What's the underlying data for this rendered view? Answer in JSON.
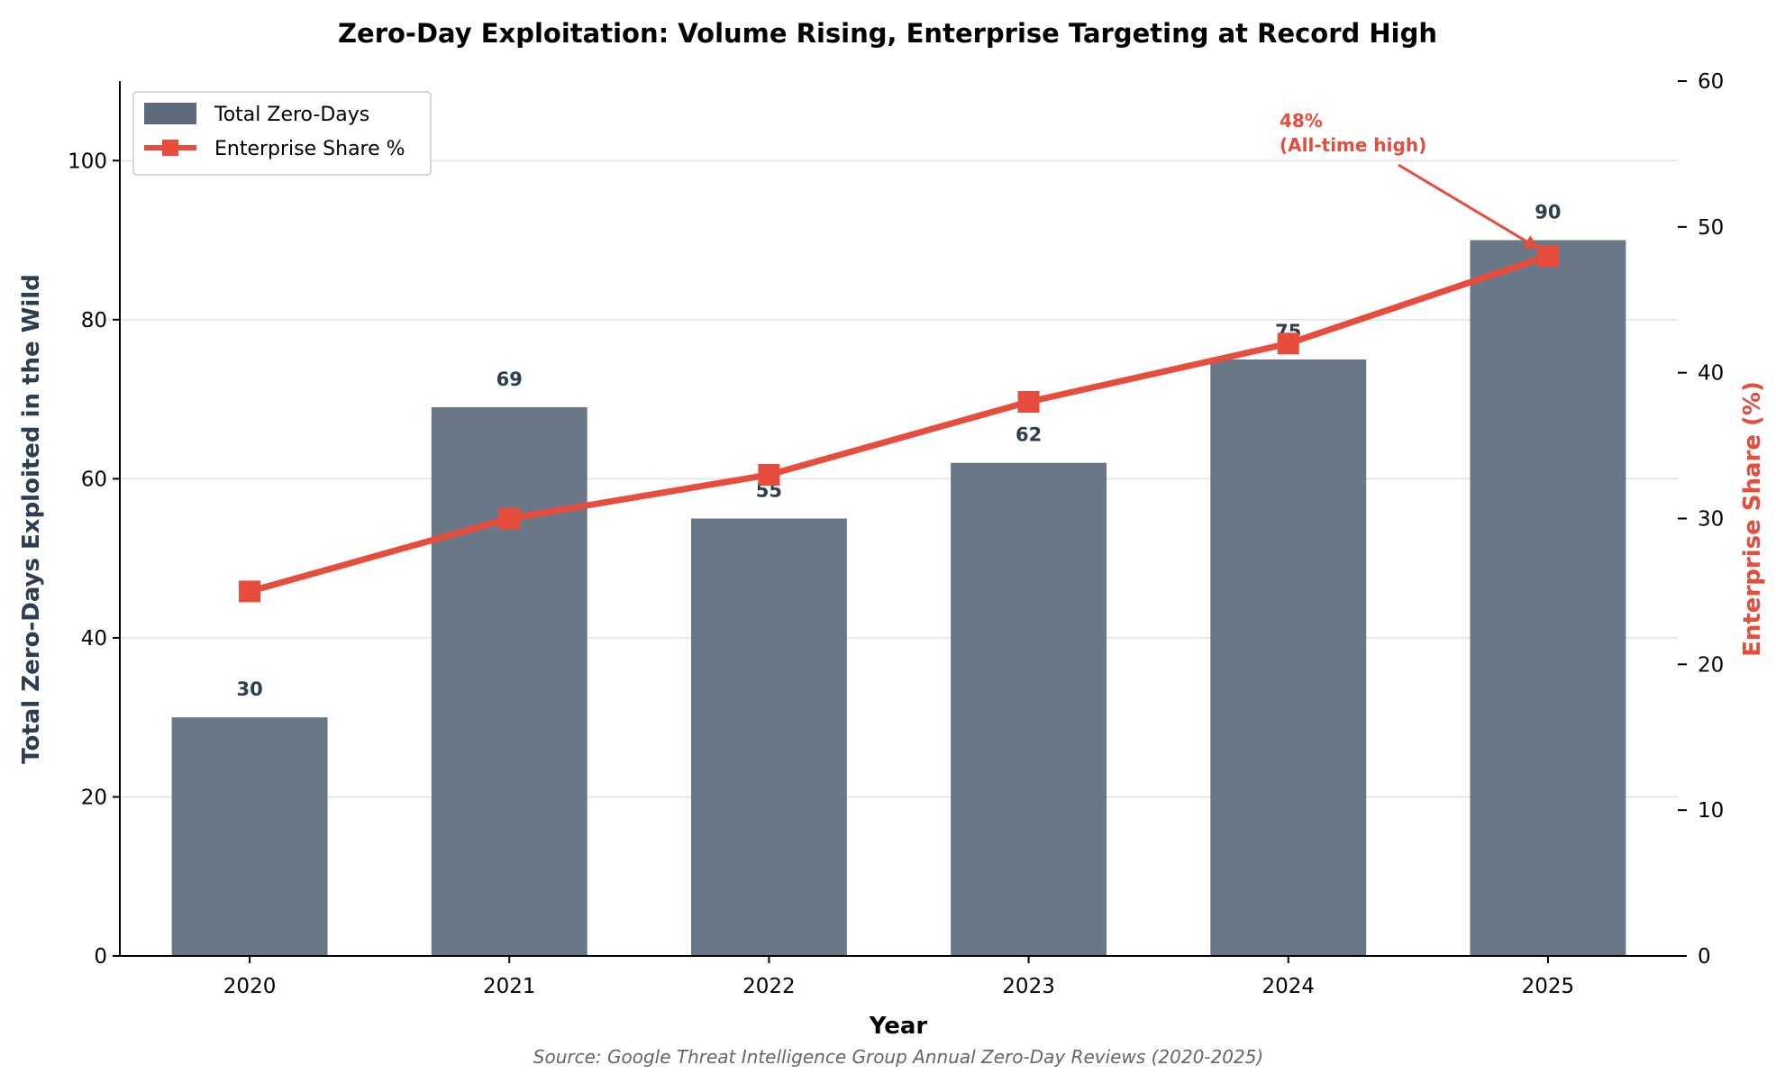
{
  "chart_data": {
    "type": "bar",
    "title": "Zero-Day Exploitation: Volume Rising, Enterprise Targeting at Record High",
    "xlabel": "Year",
    "ylabel": "Total Zero-Days Exploited in the Wild",
    "y2label": "Enterprise Share (%)",
    "categories": [
      "2020",
      "2021",
      "2022",
      "2023",
      "2024",
      "2025"
    ],
    "ylim": [
      0,
      110
    ],
    "y2lim": [
      0,
      60
    ],
    "yticks": [
      0,
      20,
      40,
      60,
      80,
      100
    ],
    "y2ticks": [
      0,
      10,
      20,
      30,
      40,
      50,
      60
    ],
    "grid": "horizontal",
    "legend_position": "top-left",
    "series": [
      {
        "name": "Total Zero-Days",
        "type": "bar",
        "axis": "left",
        "color": "#5d6b7d",
        "values": [
          30,
          69,
          55,
          62,
          75,
          90
        ]
      },
      {
        "name": "Enterprise Share %",
        "type": "line",
        "axis": "right",
        "color": "#e74c3c",
        "values": [
          25,
          30,
          33,
          38,
          42,
          48
        ]
      }
    ],
    "annotation": {
      "line1": "48%",
      "line2": "(All-time high)",
      "category": "2025",
      "color": "#e74c3c"
    },
    "source": "Source: Google Threat Intelligence Group Annual Zero-Day Reviews (2020-2025)"
  }
}
